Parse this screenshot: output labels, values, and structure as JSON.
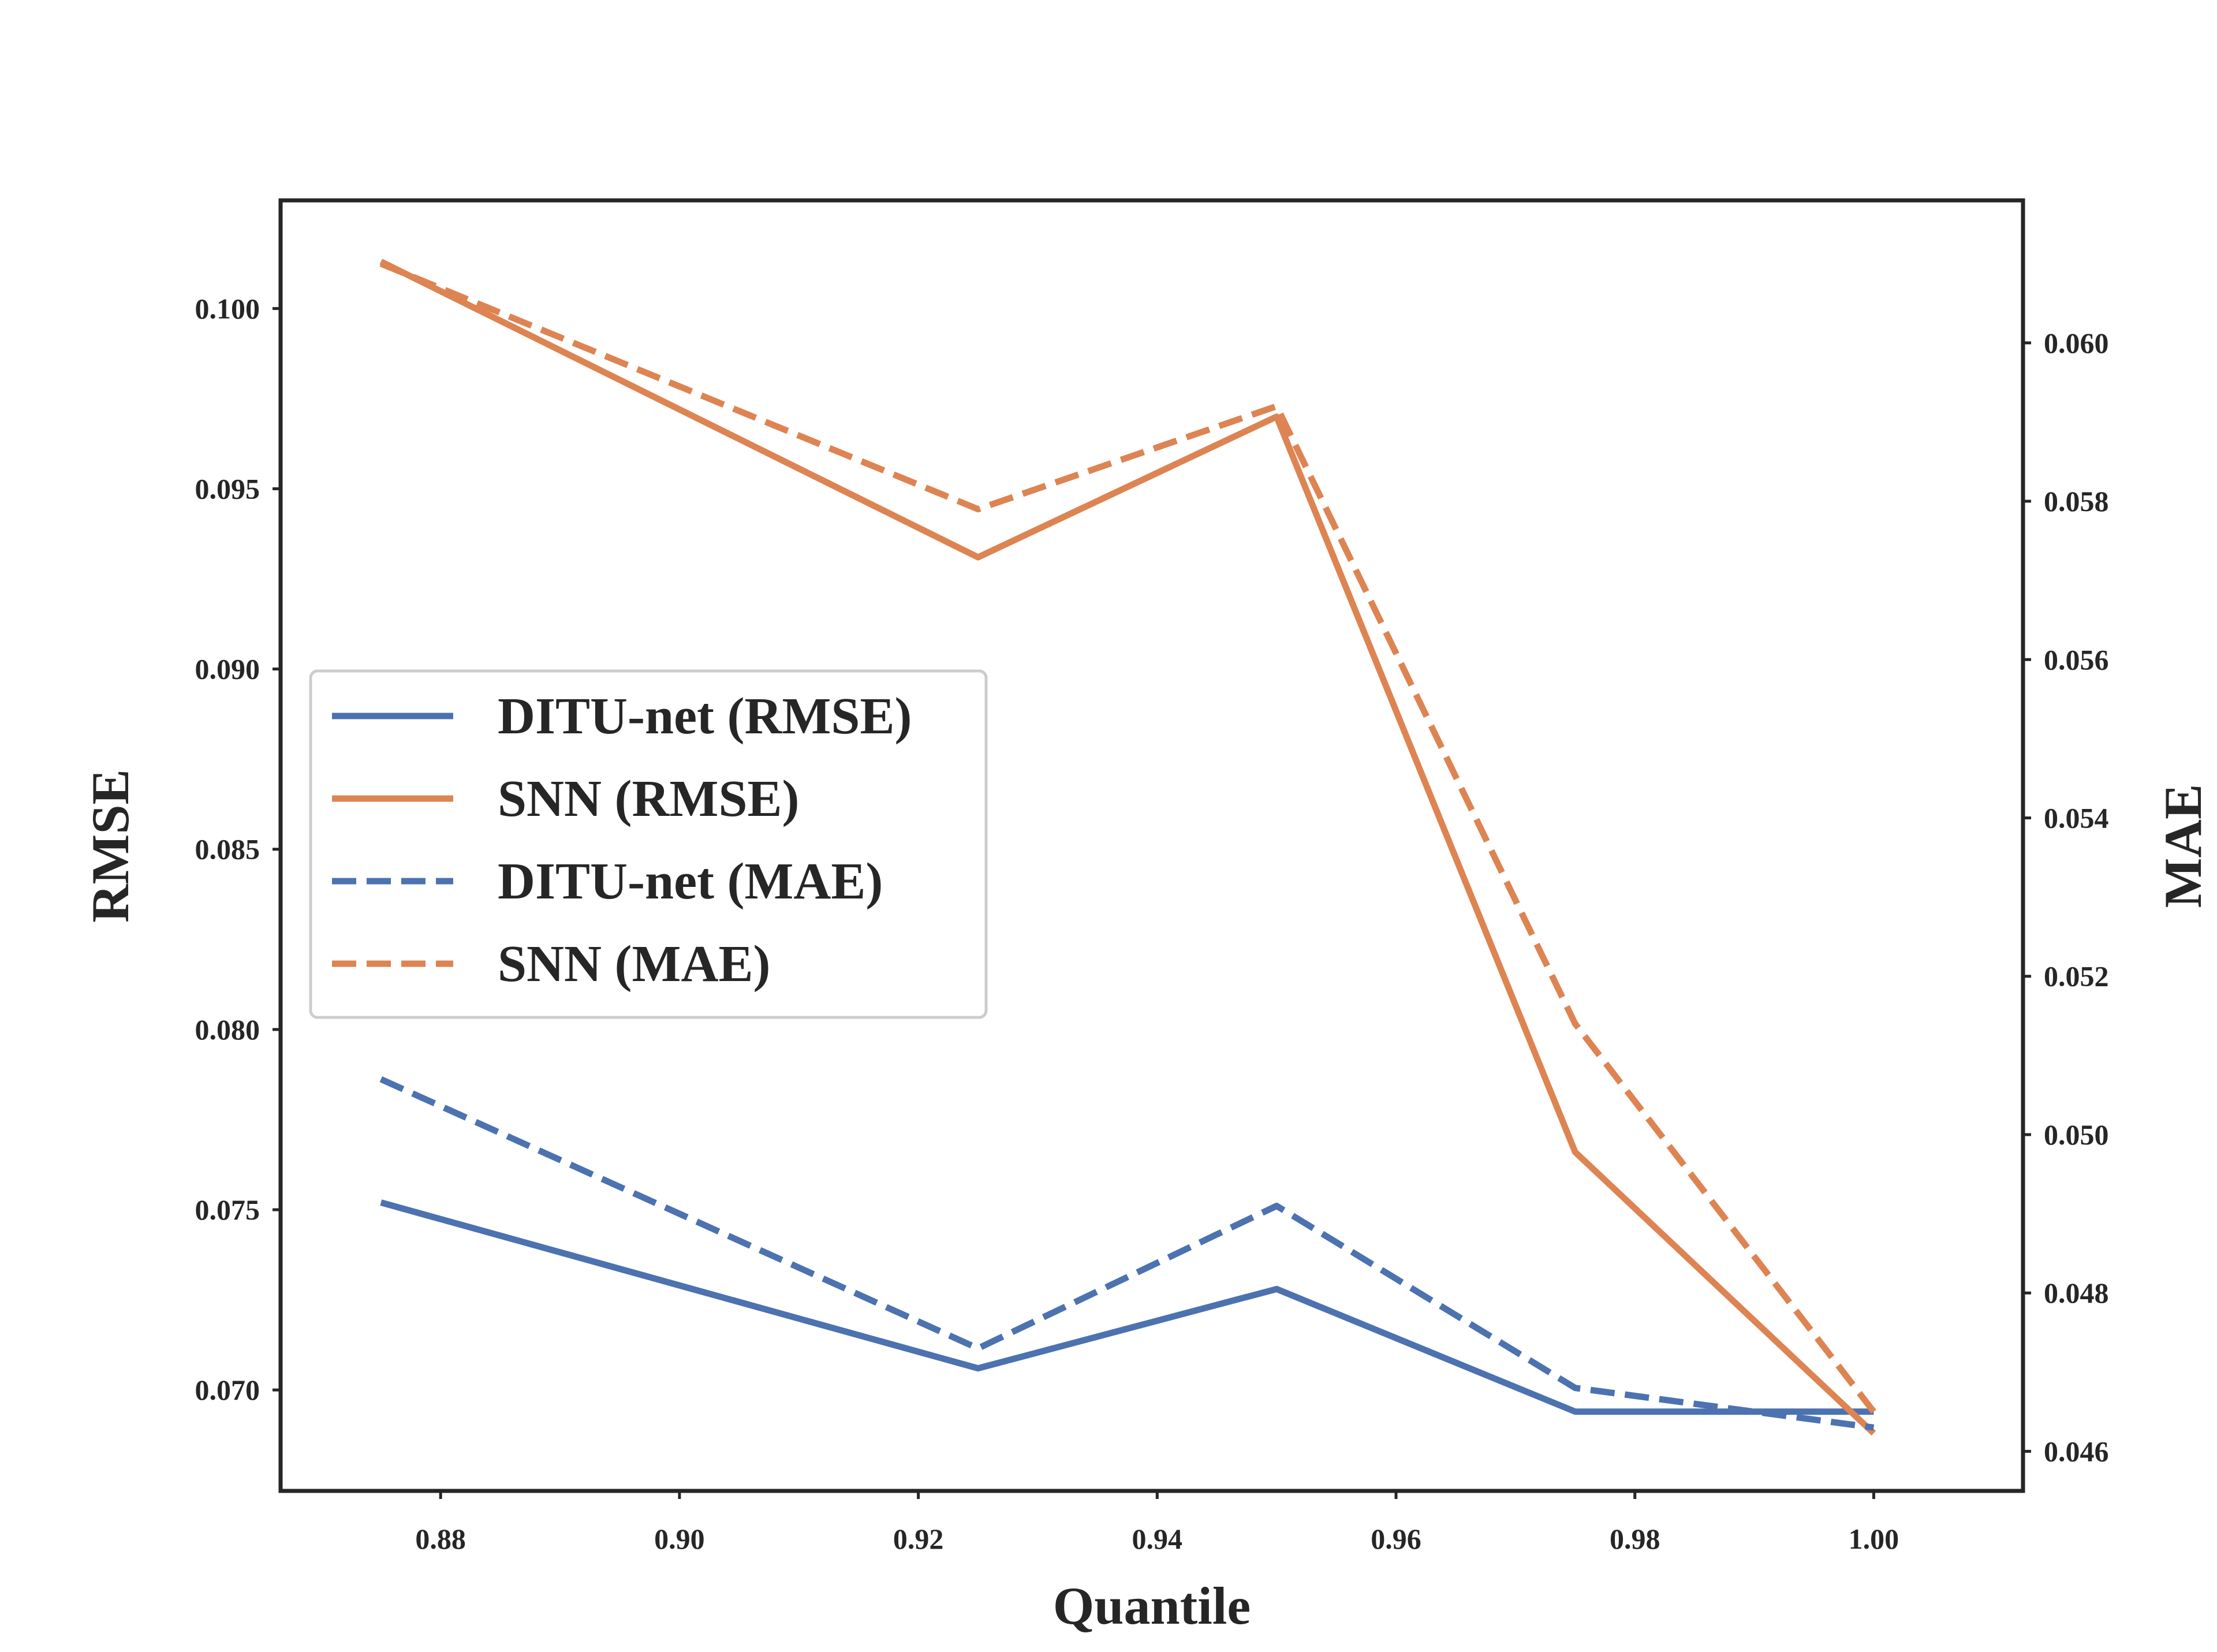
{
  "chart_data": {
    "type": "line",
    "title": "",
    "xlabel": "Quantile",
    "ylabel": "RMSE",
    "y2label": "MAE",
    "x": [
      0.875,
      0.925,
      0.95,
      0.975,
      1.0
    ],
    "xlim": [
      0.8666,
      1.0125
    ],
    "ylim": [
      0.0672,
      0.103
    ],
    "y2lim": [
      0.0455,
      0.0618
    ],
    "x_ticks": [
      "0.88",
      "0.90",
      "0.92",
      "0.94",
      "0.96",
      "0.98",
      "1.00"
    ],
    "y_ticks": [
      "0.070",
      "0.075",
      "0.080",
      "0.085",
      "0.090",
      "0.095",
      "0.100"
    ],
    "y2_ticks": [
      "0.046",
      "0.048",
      "0.050",
      "0.052",
      "0.054",
      "0.056",
      "0.058",
      "0.060"
    ],
    "grid": false,
    "legend_position": "center-left",
    "series": [
      {
        "name": "DITU-net (RMSE)",
        "axis": "left",
        "style": "solid",
        "color": "#4c72b0",
        "values": [
          0.0752,
          0.0706,
          0.0728,
          0.0694,
          0.0694
        ]
      },
      {
        "name": "SNN (RMSE)",
        "axis": "left",
        "style": "solid",
        "color": "#dd8452",
        "values": [
          0.1013,
          0.0931,
          0.097,
          0.0766,
          0.0688
        ]
      },
      {
        "name": "DITU-net (MAE)",
        "axis": "right",
        "style": "dashed",
        "color": "#4c72b0",
        "values": [
          0.0507,
          0.0473,
          0.0491,
          0.0468,
          0.0463
        ]
      },
      {
        "name": "SNN (MAE)",
        "axis": "right",
        "style": "dashed",
        "color": "#dd8452",
        "values": [
          0.061,
          0.0579,
          0.0592,
          0.0514,
          0.0465
        ]
      }
    ]
  }
}
